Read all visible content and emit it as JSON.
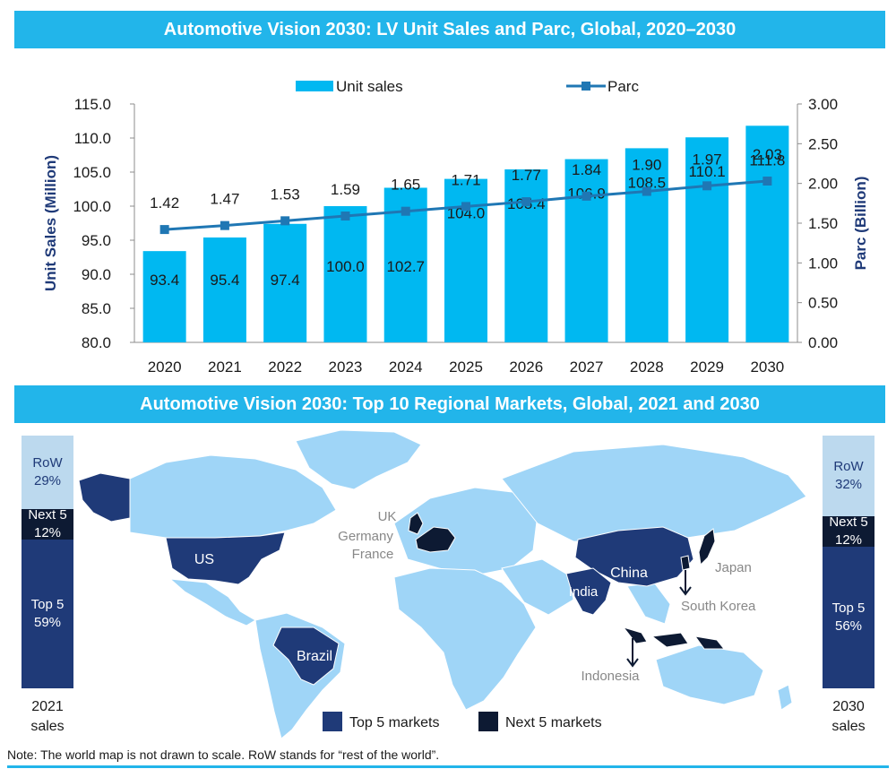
{
  "banner_top": "Automotive Vision 2030: LV Unit Sales and Parc, Global, 2020–2030",
  "banner_bottom": "Automotive Vision 2030: Top 10 Regional Markets, Global, 2021 and 2030",
  "chart_data": {
    "type": "bar",
    "title": "Automotive Vision 2030: LV Unit Sales and Parc, Global, 2020–2030",
    "categories": [
      "2020",
      "2021",
      "2022",
      "2023",
      "2024",
      "2025",
      "2026",
      "2027",
      "2028",
      "2029",
      "2030"
    ],
    "series": [
      {
        "name": "Unit sales",
        "type": "bar",
        "axis": "left",
        "values": [
          93.4,
          95.4,
          97.4,
          100.0,
          102.7,
          104.0,
          105.4,
          106.9,
          108.5,
          110.1,
          111.8
        ],
        "labels": [
          "93.4",
          "95.4",
          "97.4",
          "100.0",
          "102.7",
          "104.0",
          "105.4",
          "106.9",
          "108.5",
          "110.1",
          "111.8"
        ]
      },
      {
        "name": "Parc",
        "type": "line",
        "axis": "right",
        "values": [
          1.42,
          1.47,
          1.53,
          1.59,
          1.65,
          1.71,
          1.77,
          1.84,
          1.9,
          1.97,
          2.03
        ],
        "labels": [
          "1.42",
          "1.47",
          "1.53",
          "1.59",
          "1.65",
          "1.71",
          "1.77",
          "1.84",
          "1.90",
          "1.97",
          "2.03"
        ]
      }
    ],
    "ylabel": "Unit Sales (Million)",
    "y2label": "Parc (Billion)",
    "ylim": [
      80,
      115
    ],
    "y2lim": [
      0,
      3
    ],
    "yticks": [
      "80.0",
      "85.0",
      "90.0",
      "95.0",
      "100.0",
      "105.0",
      "110.0",
      "115.0"
    ],
    "y2ticks": [
      "0.00",
      "0.50",
      "1.00",
      "1.50",
      "2.00",
      "2.50",
      "3.00"
    ],
    "legend": "top",
    "grid": false,
    "colors": {
      "bar": "#00b8f1",
      "line": "#1f77b4"
    }
  },
  "map": {
    "colors": {
      "ocean": "#ffffff",
      "land": "#9fd5f7",
      "border": "#ffffff",
      "top5": "#1f3a78",
      "next5": "#0d1a33"
    },
    "labels": {
      "us": "US",
      "brazil": "Brazil",
      "china": "China",
      "india": "India",
      "uk": "UK",
      "germany": "Germany",
      "france": "France",
      "japan": "Japan",
      "south_korea": "South Korea",
      "indonesia": "Indonesia"
    },
    "legend": {
      "top5": "Top 5 markets",
      "next5": "Next 5 markets"
    }
  },
  "shares": {
    "y2021": {
      "year_label": "2021",
      "sales_label": "sales",
      "row_label": "RoW",
      "row_value": "29%",
      "row_pct": 29,
      "next5_label": "Next 5",
      "next5_value": "12%",
      "next5_pct": 12,
      "top5_label": "Top 5",
      "top5_value": "59%",
      "top5_pct": 59
    },
    "y2030": {
      "year_label": "2030",
      "sales_label": "sales",
      "row_label": "RoW",
      "row_value": "32%",
      "row_pct": 32,
      "next5_label": "Next 5",
      "next5_value": "12%",
      "next5_pct": 12,
      "top5_label": "Top 5",
      "top5_value": "56%",
      "top5_pct": 56
    },
    "colors": {
      "row": "#bcd9ee",
      "next5": "#0d1a33",
      "top5": "#1f3a78"
    }
  },
  "note": "Note: The world map is not drawn to scale. RoW stands for “rest of the world”."
}
